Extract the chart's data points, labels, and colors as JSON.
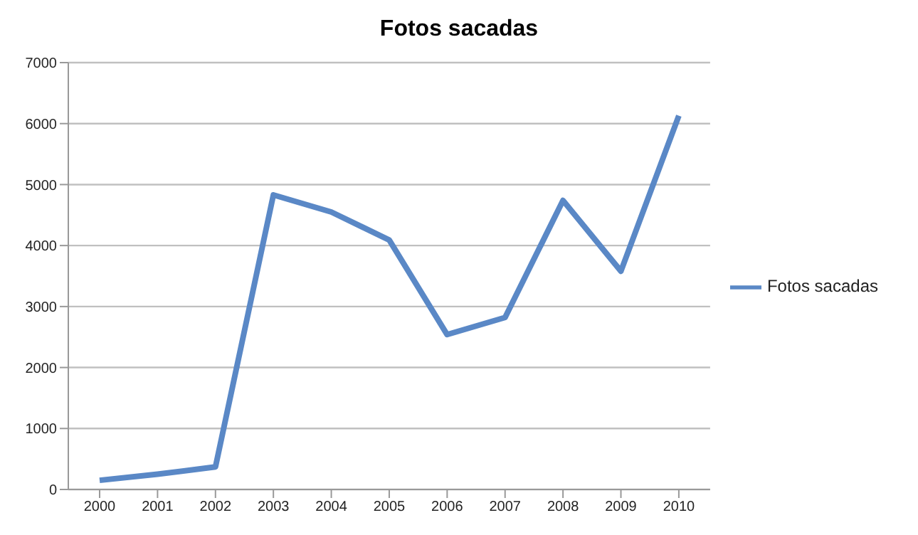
{
  "chart_data": {
    "type": "line",
    "title": "Fotos sacadas",
    "categories": [
      "2000",
      "2001",
      "2002",
      "2003",
      "2004",
      "2005",
      "2006",
      "2007",
      "2008",
      "2009",
      "2010"
    ],
    "series": [
      {
        "name": "Fotos sacadas",
        "color": "#5a88c6",
        "values": [
          150,
          250,
          370,
          4830,
          4550,
          4090,
          2540,
          2820,
          4740,
          3580,
          6130
        ]
      }
    ],
    "ylim": [
      0,
      7000
    ],
    "yticks": [
      0,
      1000,
      2000,
      3000,
      4000,
      5000,
      6000,
      7000
    ],
    "grid": "y",
    "legend": "right",
    "marker": "none",
    "line_style": "solid"
  }
}
